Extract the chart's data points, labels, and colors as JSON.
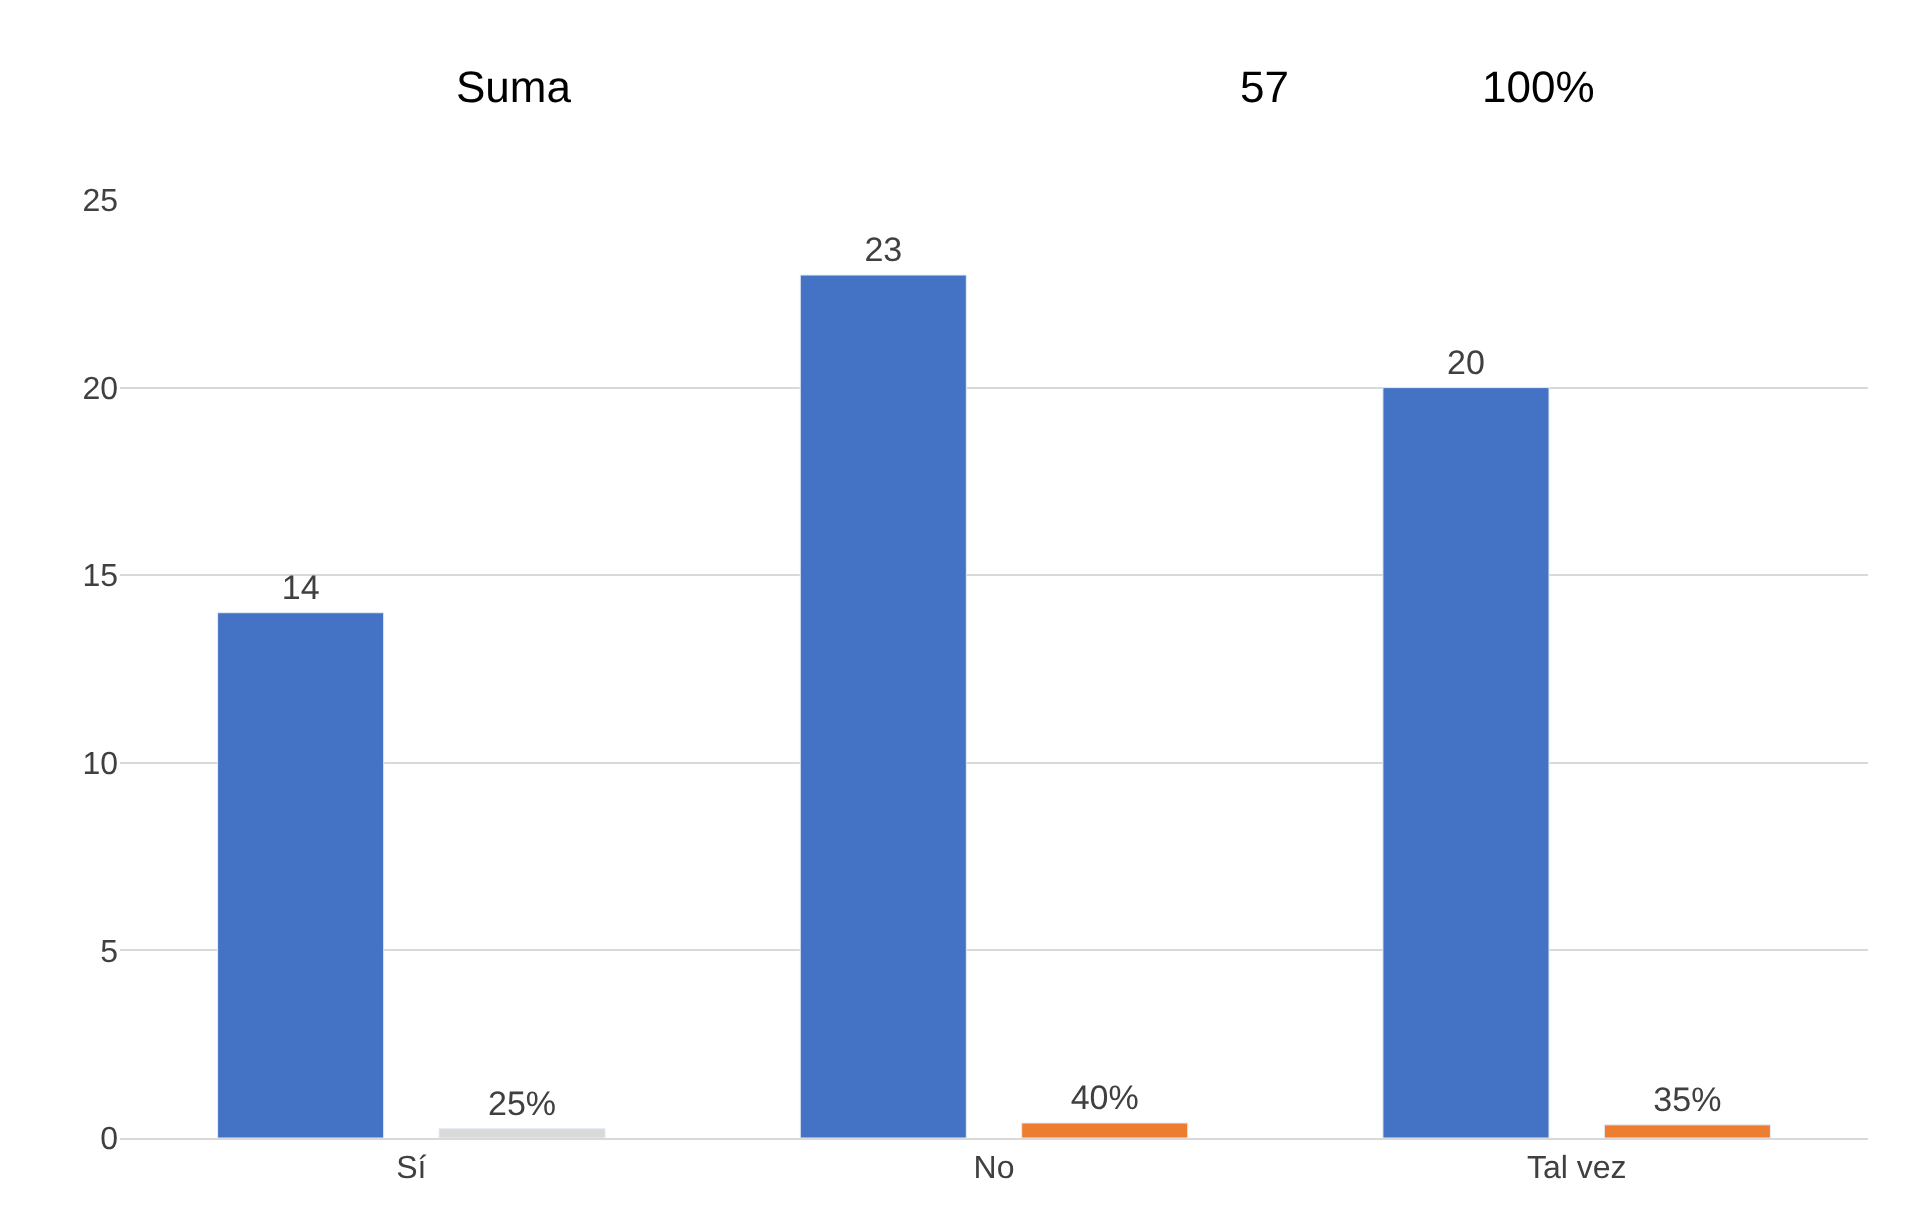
{
  "chart_data": {
    "type": "bar",
    "categories": [
      "Sí",
      "No",
      "Tal vez"
    ],
    "series": [
      {
        "color": "#4472c4",
        "values": [
          14,
          23,
          20
        ],
        "value_labels": [
          "14",
          "23",
          "20"
        ]
      },
      {
        "color": "#ed7d31",
        "colors": [
          "#d9d9d9",
          "#ed7d31",
          "#ed7d31"
        ],
        "values": [
          0.25,
          0.4,
          0.35
        ],
        "value_labels": [
          "25%",
          "40%",
          "35%"
        ]
      }
    ],
    "ylim": [
      0,
      25
    ],
    "yticks": [
      0,
      5,
      10,
      15,
      20,
      25
    ],
    "grid": "y",
    "annotations": [
      "Suma",
      "57",
      "100%"
    ]
  }
}
